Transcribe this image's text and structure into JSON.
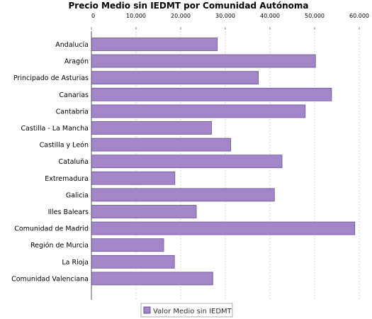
{
  "chart_data": {
    "type": "bar",
    "orientation": "horizontal",
    "title": "Precio Medio sin IEDMT por Comunidad Autónoma",
    "xlabel": "",
    "ylabel": "",
    "xlim": [
      0,
      60000
    ],
    "ticks": [
      0,
      10000,
      20000,
      30000,
      40000,
      50000,
      60000
    ],
    "tick_labels": [
      "0",
      "10.000",
      "20.000",
      "30.000",
      "40.000",
      "50.000",
      "60.000"
    ],
    "tick_axis_position": "top",
    "grid": true,
    "legend": "bottom",
    "colors": {
      "bar_fill": "#a386c9",
      "bar_stroke": "#6a5790",
      "grid": "#d8d8d8"
    },
    "categories": [
      "Andalucía",
      "Aragón",
      "Principado de Asturias",
      "Canarias",
      "Cantabria",
      "Castilla - La Mancha",
      "Castilla y León",
      "Cataluña",
      "Extremadura",
      "Galicia",
      "Illes Balears",
      "Comunidad de Madrid",
      "Región de Murcia",
      "La Rioja",
      "Comunidad Valenciana"
    ],
    "series": [
      {
        "name": "Valor Medio sin IEDMT",
        "values": [
          28200,
          50200,
          37400,
          53800,
          47900,
          26900,
          31200,
          42700,
          18700,
          41000,
          23500,
          59000,
          16200,
          18600,
          27200
        ]
      }
    ]
  }
}
